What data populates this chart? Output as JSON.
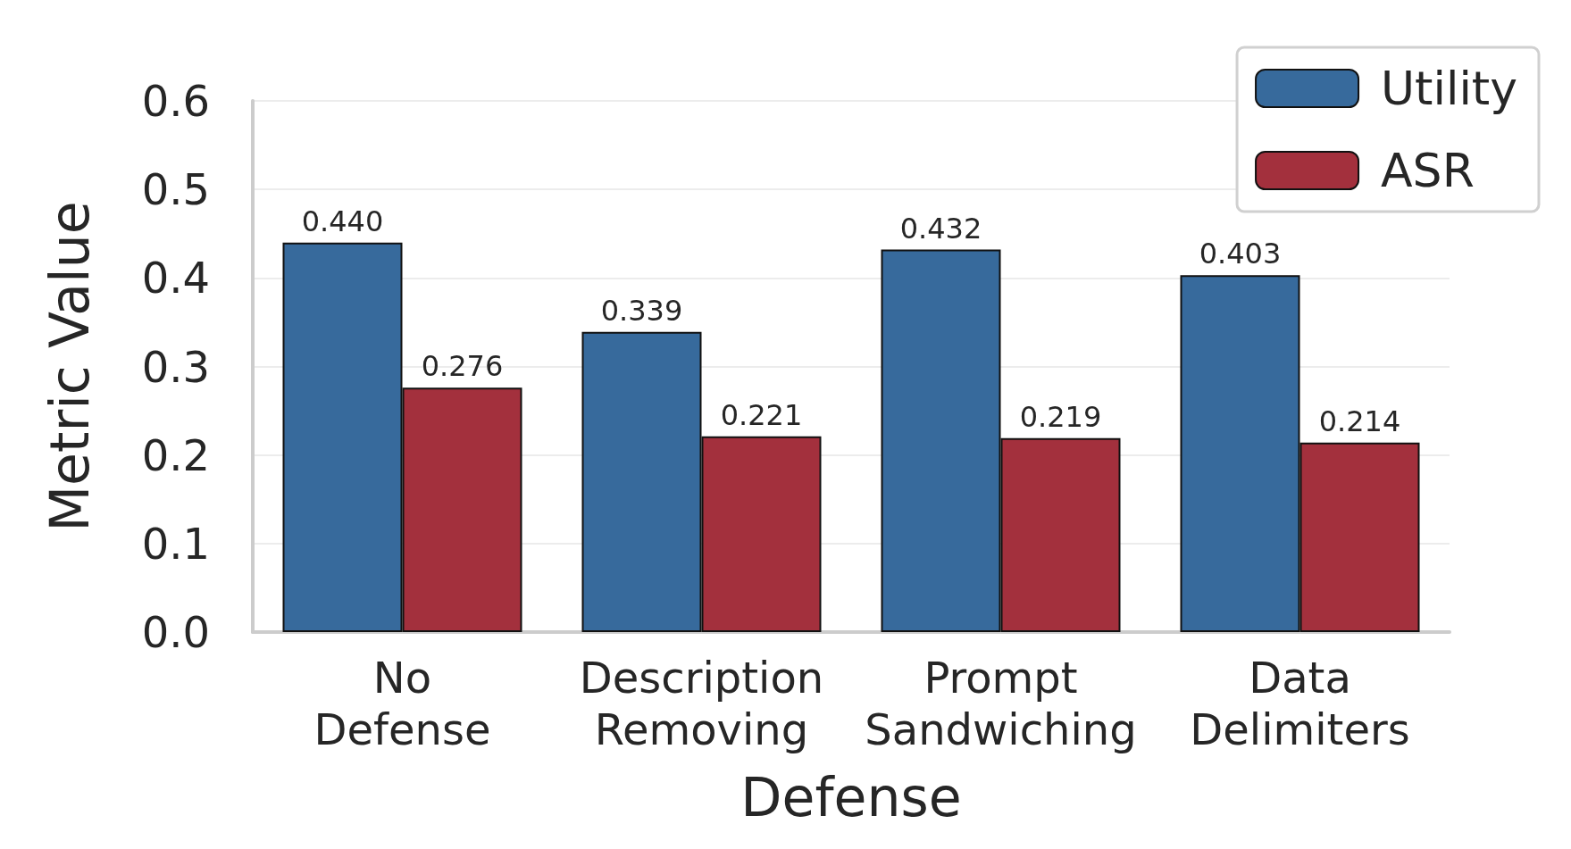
{
  "chart_data": {
    "type": "bar",
    "xlabel": "Defense",
    "ylabel": "Metric Value",
    "categories": [
      "No\nDefense",
      "Description\nRemoving",
      "Prompt\nSandwiching",
      "Data\nDelimiters"
    ],
    "series": [
      {
        "name": "Utility",
        "color": "#376a9c",
        "values": [
          0.44,
          0.339,
          0.432,
          0.403
        ],
        "value_labels": [
          "0.440",
          "0.339",
          "0.432",
          "0.403"
        ]
      },
      {
        "name": "ASR",
        "color": "#a3303d",
        "values": [
          0.276,
          0.221,
          0.219,
          0.214
        ],
        "value_labels": [
          "0.276",
          "0.221",
          "0.219",
          "0.214"
        ]
      }
    ],
    "ylim": [
      0,
      0.6
    ],
    "yticks": [
      {
        "value": 0,
        "label": "0.0"
      },
      0.1,
      0.2,
      0.3,
      0.4,
      0.5,
      0.6
    ],
    "grid": "y",
    "legend": "top right"
  }
}
